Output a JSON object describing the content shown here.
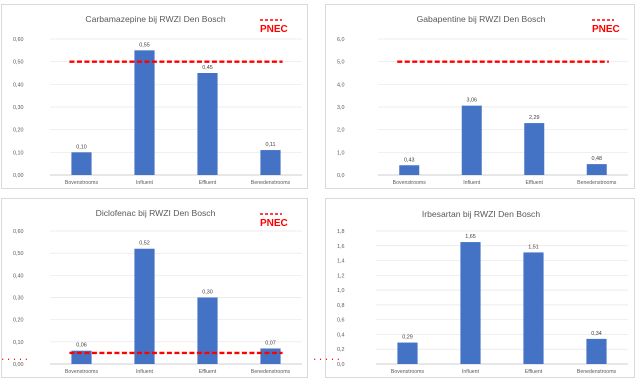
{
  "chart_data": [
    {
      "type": "bar",
      "title": "Carbamazepine bij RWZI Den Bosch",
      "categories": [
        "Bovenstrooms",
        "Influent",
        "Effluent",
        "Benedenstrooms"
      ],
      "values": [
        0.1,
        0.55,
        0.45,
        0.11
      ],
      "data_labels": [
        "0,10",
        "0,55",
        "0,45",
        "0,11"
      ],
      "yticks": [
        "0,00",
        "0,10",
        "0,20",
        "0,30",
        "0,40",
        "0,50",
        "0,60"
      ],
      "ylim": [
        0,
        0.6
      ],
      "pnec": 0.5,
      "legend": "PNEC",
      "legend_position": "top-right",
      "bar_color": "#4472c4",
      "pnec_color": "#ff0000",
      "grid": true
    },
    {
      "type": "bar",
      "title": "Gabapentine bij RWZI Den Bosch",
      "categories": [
        "Bovenstrooms",
        "Influent",
        "Effluent",
        "Benedenstrooms"
      ],
      "values": [
        0.43,
        3.06,
        2.29,
        0.48
      ],
      "data_labels": [
        "0,43",
        "3,06",
        "2,29",
        "0,48"
      ],
      "yticks": [
        "0,0",
        "1,0",
        "2,0",
        "3,0",
        "4,0",
        "5,0",
        "6,0"
      ],
      "ylim": [
        0,
        6
      ],
      "pnec": 5.0,
      "legend": "PNEC",
      "legend_position": "top-right",
      "bar_color": "#4472c4",
      "pnec_color": "#ff0000",
      "grid": true
    },
    {
      "type": "bar",
      "title": "Diclofenac bij RWZI Den Bosch",
      "categories": [
        "Bovenstrooms",
        "Influent",
        "Effluent",
        "Benedenstrooms"
      ],
      "values": [
        0.06,
        0.52,
        0.3,
        0.07
      ],
      "data_labels": [
        "0,06",
        "0,52",
        "0,30",
        "0,07"
      ],
      "yticks": [
        "0,00",
        "0,10",
        "0,20",
        "0,30",
        "0,40",
        "0,50",
        "0,60"
      ],
      "ylim": [
        0,
        0.6
      ],
      "pnec": 0.05,
      "legend": "PNEC",
      "legend_position": "top-right",
      "bar_color": "#4472c4",
      "pnec_color": "#ff0000",
      "grid": true
    },
    {
      "type": "bar",
      "title": "Irbesartan bij RWZI Den Bosch",
      "categories": [
        "Bovenstrooms",
        "Influent",
        "Effluent",
        "Benedenstrooms"
      ],
      "values": [
        0.29,
        1.65,
        1.51,
        0.34
      ],
      "data_labels": [
        "0,29",
        "1,65",
        "1,51",
        "0,34"
      ],
      "yticks": [
        "0,0",
        "0,2",
        "0,4",
        "0,6",
        "0,8",
        "1,0",
        "1,2",
        "1,4",
        "1,6",
        "1,8"
      ],
      "ylim": [
        0,
        1.8
      ],
      "bar_color": "#4472c4",
      "grid": true
    }
  ]
}
